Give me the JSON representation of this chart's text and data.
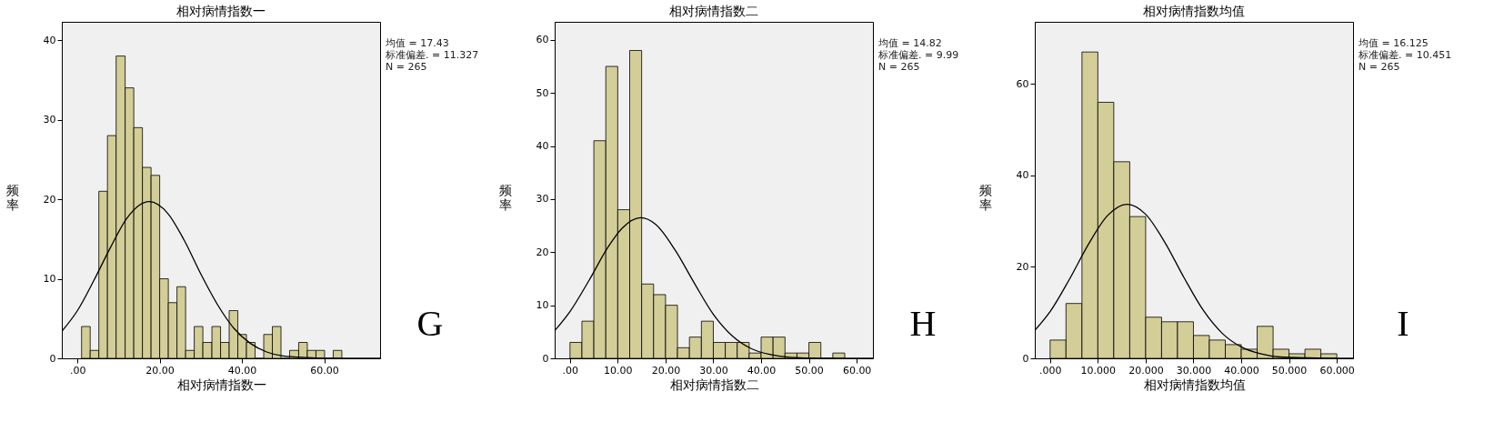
{
  "chart_data": [
    {
      "type": "histogram",
      "title": "相对病情指数一",
      "xlabel": "相对病情指数一",
      "ylabel": "频率",
      "color": "#d3ce97",
      "grid": false,
      "bins": [
        1.0,
        3.1,
        5.2,
        7.3,
        9.4,
        11.6,
        13.7,
        15.8,
        17.9,
        20.0,
        22.1,
        24.2,
        26.3,
        28.4,
        30.5,
        32.7,
        34.8,
        36.9,
        39.0,
        41.1,
        43.2,
        45.3,
        47.4,
        49.5,
        51.6,
        53.8,
        55.9,
        58.0,
        60.1,
        62.2,
        64.3
      ],
      "values": [
        4,
        1,
        21,
        28,
        38,
        34,
        29,
        24,
        23,
        10,
        7,
        9,
        1,
        4,
        2,
        4,
        2,
        6,
        3,
        2,
        0,
        3,
        4,
        0,
        1,
        2,
        1,
        1,
        0,
        1
      ],
      "xlim": [
        -3.8,
        73.6
      ],
      "ylim": [
        0,
        42.3
      ],
      "xticks": [
        {
          "value": 0,
          "label": ".00"
        },
        {
          "value": 20,
          "label": "20.00"
        },
        {
          "value": 40,
          "label": "40.00"
        },
        {
          "value": 60,
          "label": "60.00"
        }
      ],
      "yticks": [
        0,
        10,
        20,
        30,
        40
      ],
      "series": [
        {
          "type": "line",
          "color": "#000000",
          "x": [
            -3.8,
            0,
            4,
            8,
            12,
            17.43,
            22,
            26,
            30,
            34,
            38,
            42,
            46,
            50,
            56,
            62,
            73.6
          ],
          "values": [
            3.4,
            6.0,
            9.8,
            13.9,
            17.6,
            19.7,
            18.2,
            14.8,
            10.6,
            6.8,
            3.8,
            1.9,
            0.8,
            0.3,
            0.1,
            0.0,
            0.0
          ]
        }
      ],
      "annotations": [
        "均值 = 17.43",
        "标准偏差. = 11.327",
        "N = 265",
        "G"
      ]
    },
    {
      "type": "histogram",
      "title": "相对病情指数二",
      "xlabel": "相对病情指数二",
      "ylabel": "频率",
      "color": "#d3ce97",
      "grid": false,
      "bins": [
        0,
        2.5,
        5,
        7.5,
        10,
        12.5,
        15,
        17.5,
        20,
        22.5,
        25,
        27.5,
        30,
        32.5,
        35,
        37.5,
        40,
        42.5,
        45,
        47.5,
        50,
        52.5,
        55,
        57.5
      ],
      "values": [
        3,
        7,
        41,
        55,
        28,
        58,
        14,
        12,
        10,
        2,
        4,
        7,
        3,
        3,
        3,
        1,
        4,
        4,
        1,
        1,
        3,
        0,
        1
      ],
      "xlim": [
        -3.2,
        63.4
      ],
      "ylim": [
        0,
        63.4
      ],
      "xticks": [
        {
          "value": 0,
          "label": ".00"
        },
        {
          "value": 10,
          "label": "10.00"
        },
        {
          "value": 20,
          "label": "20.00"
        },
        {
          "value": 30,
          "label": "30.00"
        },
        {
          "value": 40,
          "label": "40.00"
        },
        {
          "value": 50,
          "label": "50.00"
        },
        {
          "value": 60,
          "label": "60.00"
        }
      ],
      "yticks": [
        0,
        10,
        20,
        30,
        40,
        50,
        60
      ],
      "series": [
        {
          "type": "line",
          "color": "#000000",
          "x": [
            -3.2,
            0,
            4,
            8,
            11,
            14.82,
            18,
            22,
            26,
            30,
            34,
            38,
            42,
            46,
            52,
            63.4
          ],
          "values": [
            5.2,
            8.8,
            14.7,
            21.0,
            24.6,
            26.5,
            25.2,
            20.4,
            14.2,
            8.3,
            4.2,
            1.8,
            0.7,
            0.2,
            0.0,
            0.0
          ]
        }
      ],
      "annotations": [
        "均值 = 14.82",
        "标准偏差. = 9.99",
        "N = 265",
        "H"
      ]
    },
    {
      "type": "histogram",
      "title": "相对病情指数均值",
      "xlabel": "相对病情指数均值",
      "ylabel": "频率",
      "color": "#d3ce97",
      "grid": false,
      "bins": [
        0,
        3.33,
        6.67,
        10,
        13.33,
        16.67,
        20,
        23.33,
        26.67,
        30,
        33.33,
        36.67,
        40,
        43.33,
        46.67,
        50,
        53.33,
        56.67,
        60
      ],
      "values": [
        4,
        12,
        67,
        56,
        43,
        31,
        9,
        8,
        8,
        5,
        4,
        3,
        2,
        7,
        2,
        1,
        2,
        1
      ],
      "xlim": [
        -3.2,
        63.4
      ],
      "ylim": [
        0,
        73.6
      ],
      "xticks": [
        {
          "value": 0,
          "label": ".000"
        },
        {
          "value": 10,
          "label": "10.000"
        },
        {
          "value": 20,
          "label": "20.000"
        },
        {
          "value": 30,
          "label": "30.000"
        },
        {
          "value": 40,
          "label": "40.000"
        },
        {
          "value": 50,
          "label": "50.000"
        },
        {
          "value": 60,
          "label": "60.000"
        }
      ],
      "yticks": [
        0,
        20,
        40,
        60
      ],
      "series": [
        {
          "type": "line",
          "color": "#000000",
          "x": [
            -3.2,
            0,
            4,
            8,
            12,
            16.125,
            20,
            24,
            28,
            32,
            36,
            40,
            44,
            48,
            54,
            63.4
          ],
          "values": [
            6.1,
            10.2,
            17.2,
            24.9,
            31.2,
            33.7,
            31.5,
            25.4,
            17.7,
            10.6,
            5.5,
            2.5,
            1.0,
            0.3,
            0.1,
            0.0
          ]
        }
      ],
      "annotations": [
        "均值 = 16.125",
        "标准偏差. = 10.451",
        "N = 265",
        "I"
      ]
    }
  ]
}
